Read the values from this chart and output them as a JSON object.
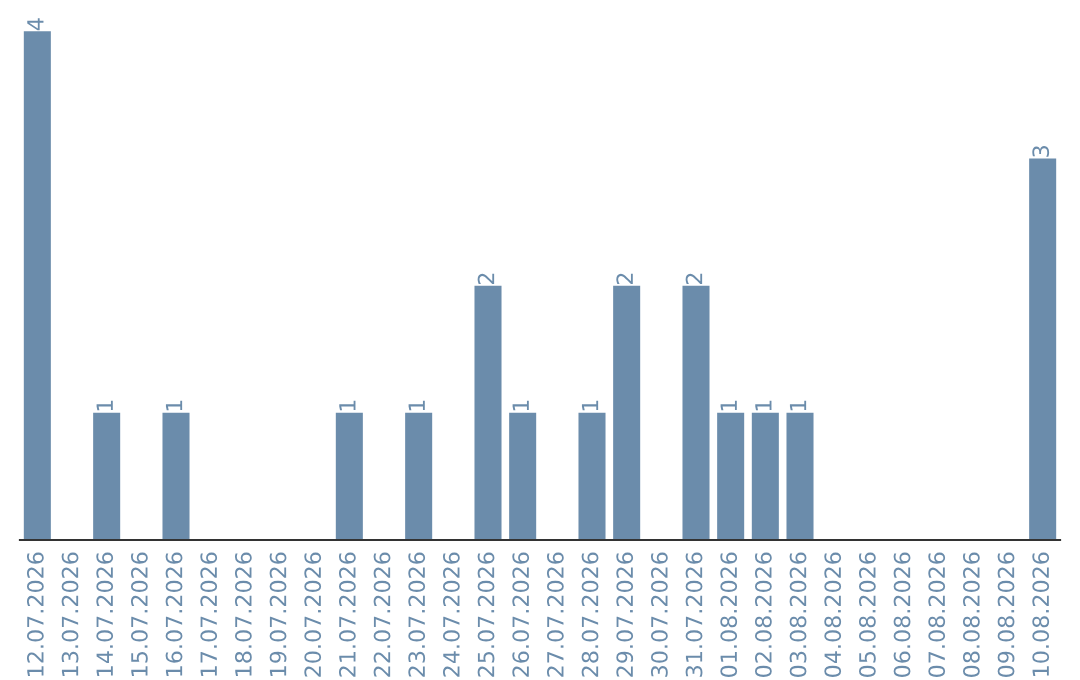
{
  "chart_data": {
    "type": "bar",
    "categories": [
      "12.07.2026",
      "13.07.2026",
      "14.07.2026",
      "15.07.2026",
      "16.07.2026",
      "17.07.2026",
      "18.07.2026",
      "19.07.2026",
      "20.07.2026",
      "21.07.2026",
      "22.07.2026",
      "23.07.2026",
      "24.07.2026",
      "25.07.2026",
      "26.07.2026",
      "27.07.2026",
      "28.07.2026",
      "29.07.2026",
      "30.07.2026",
      "31.07.2026",
      "01.08.2026",
      "02.08.2026",
      "03.08.2026",
      "04.08.2026",
      "05.08.2026",
      "06.08.2026",
      "07.08.2026",
      "08.08.2026",
      "09.08.2026",
      "10.08.2026"
    ],
    "values": [
      4,
      0,
      1,
      0,
      1,
      0,
      0,
      0,
      0,
      1,
      0,
      1,
      0,
      2,
      1,
      0,
      1,
      2,
      0,
      2,
      1,
      1,
      1,
      0,
      0,
      0,
      0,
      0,
      0,
      3
    ],
    "value_labels": [
      "4",
      null,
      "1",
      null,
      "1",
      null,
      null,
      null,
      null,
      "1",
      null,
      "1",
      null,
      "2",
      "1",
      null,
      "1",
      "2",
      null,
      "2",
      "1",
      "1",
      "1",
      null,
      null,
      null,
      null,
      null,
      null,
      "3"
    ],
    "color": "#6b8cab",
    "grid": false,
    "legend": false
  }
}
